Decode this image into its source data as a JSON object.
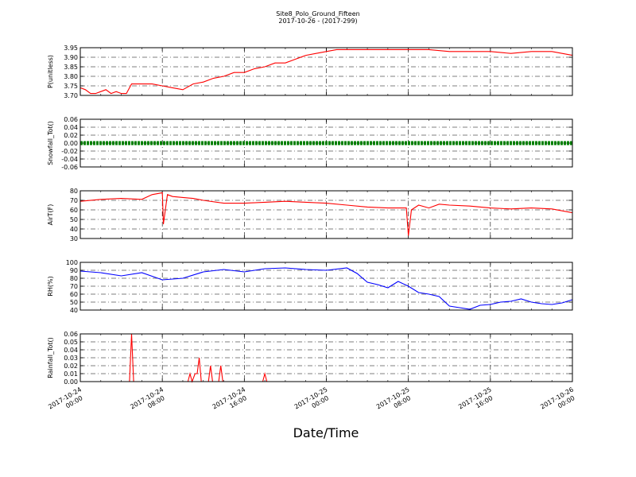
{
  "title": "Site8_Polo_Ground_Fifteen",
  "subtitle": "2017-10-26 - (2017-299)",
  "xlabel": "Date/Time",
  "x_ticks": [
    {
      "day": "2017-10-24",
      "time": "00:00",
      "hour": 0
    },
    {
      "day": "2017-10-24",
      "time": "08:00",
      "hour": 8
    },
    {
      "day": "2017-10-24",
      "time": "16:00",
      "hour": 16
    },
    {
      "day": "2017-10-25",
      "time": "00:00",
      "hour": 24
    },
    {
      "day": "2017-10-25",
      "time": "08:00",
      "hour": 32
    },
    {
      "day": "2017-10-25",
      "time": "16:00",
      "hour": 40
    },
    {
      "day": "2017-10-26",
      "time": "00:00",
      "hour": 48
    }
  ],
  "chart_data": [
    {
      "type": "line",
      "ylabel": "P(unitless)",
      "ylim": [
        3.7,
        3.95
      ],
      "yticks": [
        "3.70",
        "3.75",
        "3.80",
        "3.85",
        "3.90",
        "3.95"
      ],
      "grid": true,
      "color": "#ff0000",
      "series": [
        {
          "x": [
            0,
            0.5,
            1,
            1.5,
            2,
            2.5,
            3,
            3.5,
            4,
            4.5,
            5,
            6,
            7,
            8,
            9,
            10,
            11,
            12,
            13,
            14,
            15,
            16,
            17,
            18,
            19,
            20,
            21,
            22,
            23,
            24,
            25,
            26,
            28,
            30,
            32,
            34,
            36,
            38,
            40,
            42,
            44,
            46,
            48
          ],
          "y": [
            3.74,
            3.73,
            3.71,
            3.71,
            3.72,
            3.73,
            3.71,
            3.72,
            3.71,
            3.71,
            3.76,
            3.76,
            3.76,
            3.75,
            3.74,
            3.73,
            3.76,
            3.77,
            3.79,
            3.8,
            3.82,
            3.82,
            3.84,
            3.85,
            3.87,
            3.87,
            3.89,
            3.91,
            3.92,
            3.93,
            3.94,
            3.94,
            3.94,
            3.94,
            3.94,
            3.94,
            3.93,
            3.93,
            3.93,
            3.92,
            3.93,
            3.93,
            3.91
          ]
        }
      ]
    },
    {
      "type": "line",
      "ylabel": "Snowfall_Tot()",
      "ylim": [
        -0.06,
        0.06
      ],
      "yticks": [
        "-0.06",
        "-0.04",
        "-0.02",
        "0.00",
        "0.02",
        "0.04",
        "0.06"
      ],
      "grid": true,
      "color": "#008000",
      "marker": "dot",
      "series": [
        {
          "x": [
            0,
            48
          ],
          "y": [
            0,
            0
          ]
        }
      ]
    },
    {
      "type": "line",
      "ylabel": "AirT(F)",
      "ylim": [
        30,
        80
      ],
      "yticks": [
        "30",
        "40",
        "50",
        "60",
        "70",
        "80"
      ],
      "grid": true,
      "color": "#ff0000",
      "series": [
        {
          "x": [
            0,
            2,
            4,
            6,
            7,
            8,
            8.1,
            8.5,
            9,
            10,
            11,
            12,
            14,
            16,
            18,
            20,
            22,
            24,
            26,
            28,
            30,
            31.8,
            32,
            32.3,
            33,
            34,
            35,
            36,
            38,
            40,
            42,
            44,
            46,
            48
          ],
          "y": [
            69,
            71,
            72,
            71,
            76,
            78,
            45,
            76,
            74,
            73,
            72,
            70,
            67,
            67,
            68,
            69,
            68,
            67,
            65,
            63,
            62,
            62,
            33,
            60,
            65,
            62,
            66,
            65,
            64,
            62,
            61,
            62,
            61,
            57
          ]
        }
      ]
    },
    {
      "type": "line",
      "ylabel": "RH(%)",
      "ylim": [
        40,
        100
      ],
      "yticks": [
        "40",
        "50",
        "60",
        "70",
        "80",
        "90",
        "100"
      ],
      "grid": true,
      "color": "#0000ff",
      "series": [
        {
          "x": [
            0,
            2,
            4,
            6,
            8,
            10,
            12,
            14,
            16,
            18,
            20,
            22,
            24,
            26,
            27,
            28,
            29,
            30,
            31,
            32,
            33,
            34,
            35,
            36,
            37,
            38,
            39,
            40,
            41,
            42,
            43,
            44,
            45,
            46,
            47,
            48
          ],
          "y": [
            89,
            87,
            83,
            87,
            78,
            80,
            88,
            91,
            88,
            92,
            93,
            91,
            90,
            93,
            86,
            75,
            72,
            68,
            76,
            70,
            62,
            60,
            57,
            45,
            43,
            41,
            46,
            47,
            50,
            51,
            54,
            50,
            48,
            47,
            49,
            53
          ]
        }
      ]
    },
    {
      "type": "line",
      "ylabel": "Rainfall_Tot()",
      "ylim": [
        0.0,
        0.06
      ],
      "yticks": [
        "0.00",
        "0.01",
        "0.02",
        "0.03",
        "0.04",
        "0.05",
        "0.06"
      ],
      "grid": true,
      "color": "#ff0000",
      "series": [
        {
          "x": [
            0,
            4.8,
            5,
            5.2,
            10.5,
            10.7,
            10.9,
            11.2,
            11.4,
            11.6,
            11.8,
            12.0,
            12.5,
            12.7,
            12.9,
            13.5,
            13.7,
            13.9,
            17.8,
            18.0,
            18.2,
            48
          ],
          "y": [
            0,
            0,
            0.06,
            0,
            0,
            0.01,
            0,
            0.01,
            0.01,
            0.03,
            0,
            0,
            0,
            0.02,
            0,
            0,
            0.02,
            0,
            0,
            0.01,
            0,
            0
          ]
        }
      ]
    }
  ]
}
